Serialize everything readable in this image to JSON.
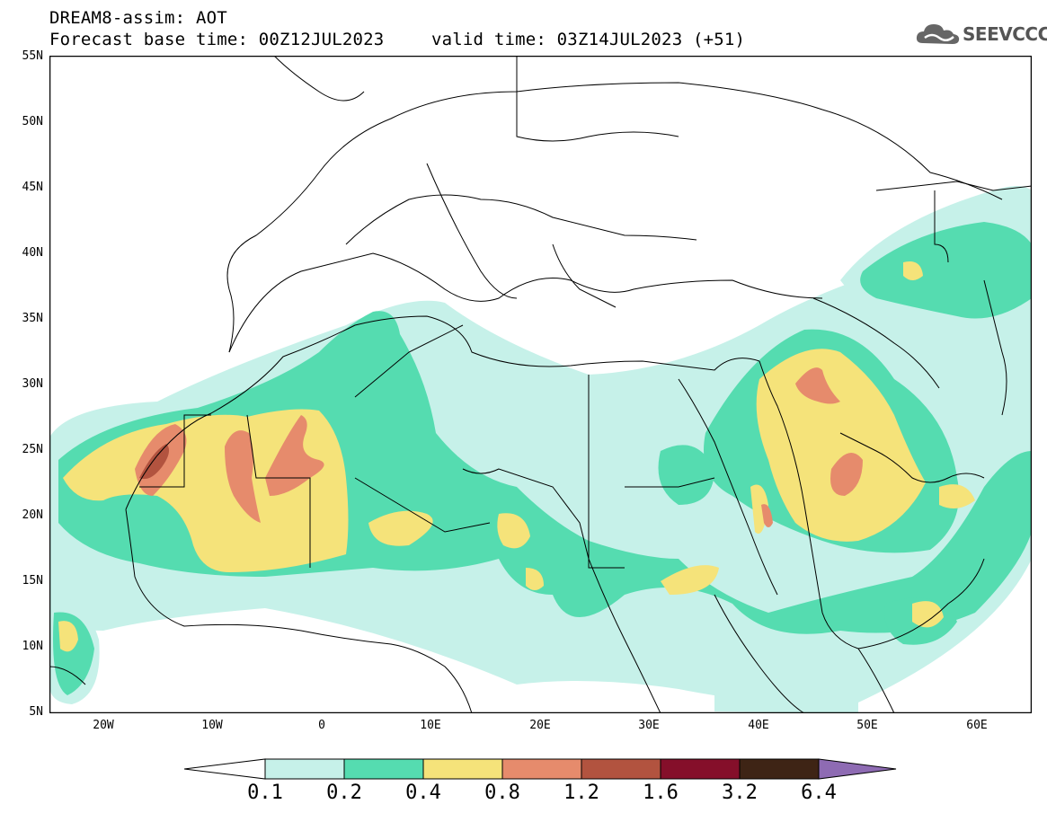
{
  "header": {
    "title": "DREAM8-assim: AOT",
    "base_time": "Forecast base time: 00Z12JUL2023",
    "valid_time": "valid time: 03Z14JUL2023 (+51)"
  },
  "logo": {
    "text": "SEEVCCC",
    "icon": "cloud-icon"
  },
  "map": {
    "lon_range": [
      -25,
      65
    ],
    "lat_range": [
      5,
      55
    ],
    "lat_ticks": [
      "55N",
      "50N",
      "45N",
      "40N",
      "35N",
      "30N",
      "25N",
      "20N",
      "15N",
      "10N",
      "5N"
    ],
    "lon_ticks": [
      "20W",
      "10W",
      "0",
      "10E",
      "20E",
      "30E",
      "40E",
      "50E",
      "60E"
    ]
  },
  "colorbar": {
    "labels": [
      "0.1",
      "0.2",
      "0.4",
      "0.8",
      "1.2",
      "1.6",
      "3.2",
      "6.4"
    ],
    "colors": [
      "#ffffff",
      "#c6f1e9",
      "#55dcb0",
      "#f5e37a",
      "#e68b6c",
      "#b2533f",
      "#850f2a",
      "#3e2415",
      "#8e6bb3"
    ]
  }
}
